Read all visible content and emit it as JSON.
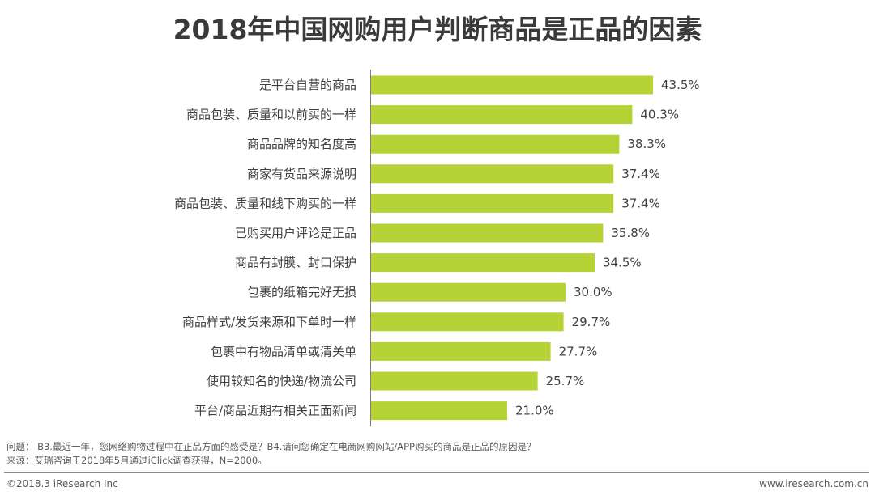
{
  "title": "2018年中国网购用户判断商品是正品的因素",
  "chart_data": {
    "type": "bar",
    "orientation": "horizontal",
    "title": "2018年中国网购用户判断商品是正品的因素",
    "xlabel": "",
    "ylabel": "",
    "xlim": [
      0,
      45
    ],
    "grid": false,
    "bar_color": "#b5d334",
    "categories": [
      "是平台自营的商品",
      "商品包装、质量和以前买的一样",
      "商品品牌的知名度高",
      "商家有货品来源说明",
      "商品包装、质量和线下购买的一样",
      "已购买用户评论是正品",
      "商品有封膜、封口保护",
      "包裹的纸箱完好无损",
      "商品样式/发货来源和下单时一样",
      "包裹中有物品清单或清关单",
      "使用较知名的快递/物流公司",
      "平台/商品近期有相关正面新闻"
    ],
    "values": [
      43.5,
      40.3,
      38.3,
      37.4,
      37.4,
      35.8,
      34.5,
      30.0,
      29.7,
      27.7,
      25.7,
      21.0
    ],
    "value_labels": [
      "43.5%",
      "40.3%",
      "38.3%",
      "37.4%",
      "37.4%",
      "35.8%",
      "34.5%",
      "30.0%",
      "29.7%",
      "27.7%",
      "25.7%",
      "21.0%"
    ]
  },
  "footer": {
    "question": "问题：  B3.最近一年，您网络购物过程中在正品方面的感受是？B4.请问您确定在电商网购网站/APP购买的商品是正品的原因是？",
    "source": "来源：艾瑞咨询于2018年5月通过iClick调查获得，N=2000。",
    "copyright": "©2018.3 iResearch Inc",
    "website": "www.iresearch.com.cn"
  }
}
